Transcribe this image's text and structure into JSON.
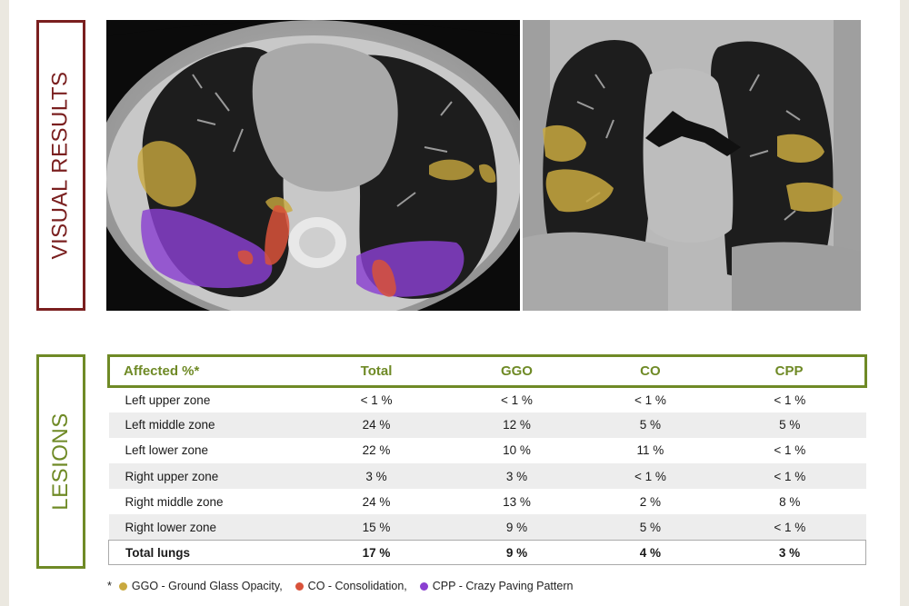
{
  "sections": {
    "visual_label": "VISUAL RESULTS",
    "lesions_label": "LESIONS"
  },
  "colors": {
    "ggo": "#c9a93f",
    "co": "#d9523a",
    "cpp": "#8a3fd1",
    "visual_border": "#7a1f1f",
    "lesions_border": "#6f8a26"
  },
  "table": {
    "headers": [
      "Affected %*",
      "Total",
      "GGO",
      "CO",
      "CPP"
    ],
    "rows": [
      {
        "zone": "Left upper zone",
        "total": "< 1 %",
        "ggo": "< 1 %",
        "co": "< 1 %",
        "cpp": "< 1 %"
      },
      {
        "zone": "Left middle zone",
        "total": "24 %",
        "ggo": "12 %",
        "co": "5 %",
        "cpp": "5 %"
      },
      {
        "zone": "Left lower zone",
        "total": "22 %",
        "ggo": "10 %",
        "co": "11 %",
        "cpp": "< 1 %"
      },
      {
        "zone": "Right upper zone",
        "total": "3 %",
        "ggo": "3 %",
        "co": "< 1 %",
        "cpp": "< 1 %"
      },
      {
        "zone": "Right middle zone",
        "total": "24 %",
        "ggo": "13 %",
        "co": "2 %",
        "cpp": "8 %"
      },
      {
        "zone": "Right lower zone",
        "total": "15 %",
        "ggo": "9 %",
        "co": "5 %",
        "cpp": "< 1 %"
      }
    ],
    "total": {
      "zone": "Total lungs",
      "total": "17 %",
      "ggo": "9 %",
      "co": "4 %",
      "cpp": "3 %"
    }
  },
  "legend": {
    "asterisk": "*",
    "items": [
      {
        "key": "ggo",
        "text": "GGO - Ground Glass Opacity,"
      },
      {
        "key": "co",
        "text": "CO - Consolidation,"
      },
      {
        "key": "cpp",
        "text": "CPP - Crazy Paving Pattern"
      }
    ]
  }
}
